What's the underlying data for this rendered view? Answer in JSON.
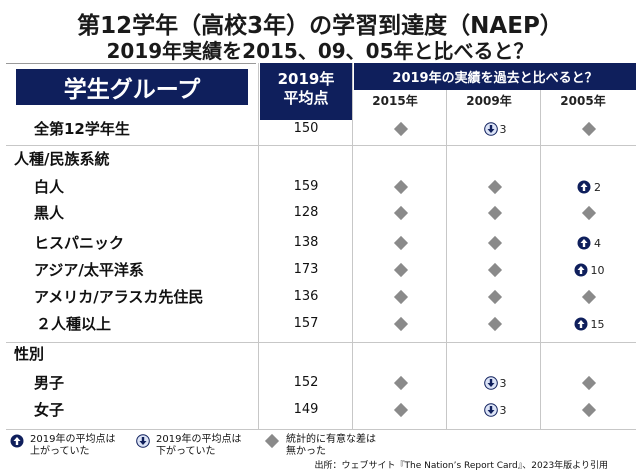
{
  "title": "第12学年（高校3年）の学習到達度（NAEP）",
  "subtitle": "2019年実績を2015、09、05年と比べると？",
  "header": {
    "group_label": "学生グループ",
    "avg_label_line1": "2019年",
    "avg_label_line2": "平均点",
    "comparison_label": "2019年の実績を過去と比べると？",
    "years": [
      "2015年",
      "2009年",
      "2005年"
    ]
  },
  "chart_data": {
    "type": "table",
    "title": "第12学年（高校3年）の学習到達度（NAEP）",
    "columns": [
      "学生グループ",
      "2019年平均点",
      "2015年",
      "2009年",
      "2005年"
    ],
    "rows": [
      {
        "group": "全第12学年生",
        "score": "150",
        "comparisons": [
          {
            "type": "nc"
          },
          {
            "type": "down",
            "diff": "3"
          },
          {
            "type": "nc"
          }
        ]
      },
      {
        "section": "人種/民族系統"
      },
      {
        "group": "白人",
        "score": "159",
        "comparisons": [
          {
            "type": "nc"
          },
          {
            "type": "nc"
          },
          {
            "type": "up",
            "diff": "2"
          }
        ]
      },
      {
        "group": "黒人",
        "score": "128",
        "comparisons": [
          {
            "type": "nc"
          },
          {
            "type": "nc"
          },
          {
            "type": "nc"
          }
        ]
      },
      {
        "group": "ヒスパニック",
        "score": "138",
        "comparisons": [
          {
            "type": "nc"
          },
          {
            "type": "nc"
          },
          {
            "type": "up",
            "diff": "4"
          }
        ]
      },
      {
        "group": "アジア/太平洋系",
        "score": "173",
        "comparisons": [
          {
            "type": "nc"
          },
          {
            "type": "nc"
          },
          {
            "type": "up",
            "diff": "10"
          }
        ]
      },
      {
        "group": "アメリカ/アラスカ先住民",
        "score": "136",
        "comparisons": [
          {
            "type": "nc"
          },
          {
            "type": "nc"
          },
          {
            "type": "nc"
          }
        ]
      },
      {
        "group": "２人種以上",
        "score": "157",
        "comparisons": [
          {
            "type": "nc"
          },
          {
            "type": "nc"
          },
          {
            "type": "up",
            "diff": "15"
          }
        ]
      },
      {
        "section": "性別"
      },
      {
        "group": "男子",
        "score": "152",
        "comparisons": [
          {
            "type": "nc"
          },
          {
            "type": "down",
            "diff": "3"
          },
          {
            "type": "nc"
          }
        ]
      },
      {
        "group": "女子",
        "score": "149",
        "comparisons": [
          {
            "type": "nc"
          },
          {
            "type": "down",
            "diff": "3"
          },
          {
            "type": "nc"
          }
        ]
      }
    ]
  },
  "legend": {
    "up_line1": "2019年の平均点は",
    "up_line2": "上がっていた",
    "down_line1": "2019年の平均点は",
    "down_line2": "下がっていた",
    "nc_line1": "統計的に有意な差は",
    "nc_line2": "無かった"
  },
  "source": "出所：ウェブサイト『The Nation’s Report Card』、2023年版より引用",
  "colors": {
    "navy": "#0f1f5c",
    "diamond": "#8a8a8a",
    "grid": "#c7c7c7"
  }
}
